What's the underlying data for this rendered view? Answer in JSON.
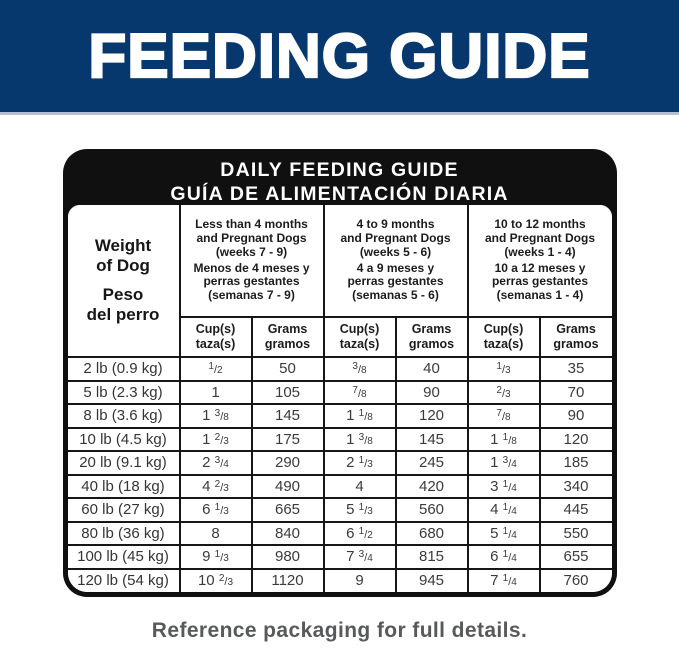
{
  "banner": {
    "title": "FEEDING GUIDE"
  },
  "colors": {
    "banner_blue": "#06386d",
    "banner_underline": "#b7c0d2",
    "table_black": "#101010",
    "data_text": "#3b3b3b",
    "footer_gray": "#58595b"
  },
  "card": {
    "title_en": "DAILY FEEDING GUIDE",
    "title_es": "GUÍA DE ALIMENTACIÓN DIARIA"
  },
  "table": {
    "weight_header": {
      "en": "Weight\nof Dog",
      "es": "Peso\ndel perro"
    },
    "age_groups": [
      {
        "en": [
          "Less than 4 months",
          "and Pregnant Dogs",
          "(weeks 7 - 9)"
        ],
        "es": [
          "Menos de 4 meses y",
          "perras gestantes",
          "(semanas 7 - 9)"
        ]
      },
      {
        "en": [
          "4 to 9 months",
          "and Pregnant Dogs",
          "(weeks 5 - 6)"
        ],
        "es": [
          "4 a 9 meses y",
          "perras gestantes",
          "(semanas 5 - 6)"
        ]
      },
      {
        "en": [
          "10 to 12 months",
          "and Pregnant Dogs",
          "(weeks 1 - 4)"
        ],
        "es": [
          "10 a 12 meses y",
          "perras gestantes",
          "(semanas 1 - 4)"
        ]
      }
    ],
    "units": {
      "cups": [
        "Cup(s)",
        "taza(s)"
      ],
      "grams": [
        "Grams",
        "gramos"
      ]
    },
    "rows": [
      {
        "weight": "2 lb (0.9 kg)",
        "cups": [
          "1/2",
          "3/8",
          "1/3"
        ],
        "grams": [
          "50",
          "40",
          "35"
        ]
      },
      {
        "weight": "5 lb (2.3 kg)",
        "cups": [
          "1",
          "7/8",
          "2/3"
        ],
        "grams": [
          "105",
          "90",
          "70"
        ]
      },
      {
        "weight": "8 lb (3.6 kg)",
        "cups": [
          "1 3/8",
          "1 1/8",
          "7/8"
        ],
        "grams": [
          "145",
          "120",
          "90"
        ]
      },
      {
        "weight": "10 lb (4.5 kg)",
        "cups": [
          "1 2/3",
          "1 3/8",
          "1 1/8"
        ],
        "grams": [
          "175",
          "145",
          "120"
        ]
      },
      {
        "weight": "20 lb (9.1 kg)",
        "cups": [
          "2 3/4",
          "2 1/3",
          "1 3/4"
        ],
        "grams": [
          "290",
          "245",
          "185"
        ]
      },
      {
        "weight": "40 lb (18 kg)",
        "cups": [
          "4 2/3",
          "4",
          "3 1/4"
        ],
        "grams": [
          "490",
          "420",
          "340"
        ]
      },
      {
        "weight": "60 lb (27 kg)",
        "cups": [
          "6 1/3",
          "5 1/3",
          "4 1/4"
        ],
        "grams": [
          "665",
          "560",
          "445"
        ]
      },
      {
        "weight": "80 lb (36 kg)",
        "cups": [
          "8",
          "6 1/2",
          "5 1/4"
        ],
        "grams": [
          "840",
          "680",
          "550"
        ]
      },
      {
        "weight": "100 lb (45 kg)",
        "cups": [
          "9 1/3",
          "7 3/4",
          "6 1/4"
        ],
        "grams": [
          "980",
          "815",
          "655"
        ]
      },
      {
        "weight": "120 lb (54 kg)",
        "cups": [
          "10 2/3",
          "9",
          "7 1/4"
        ],
        "grams": [
          "1120",
          "945",
          "760"
        ]
      }
    ]
  },
  "footer": {
    "note": "Reference packaging for full details."
  }
}
